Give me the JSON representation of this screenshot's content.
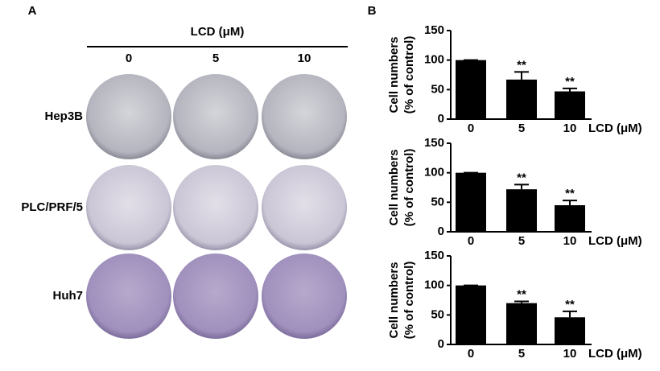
{
  "panel_a": {
    "label": "A",
    "treatment": "LCD (μM)",
    "doses": [
      "0",
      "5",
      "10"
    ],
    "cell_lines": [
      "Hep3B",
      "PLC/PRF/5",
      "Huh7"
    ]
  },
  "panel_b": {
    "label": "B"
  },
  "chart_data": [
    {
      "type": "bar",
      "ylabel": [
        "Cell numbers",
        "(% of control)"
      ],
      "xlabel": "LCD (μM)",
      "categories": [
        "0",
        "5",
        "10"
      ],
      "values": [
        100,
        67,
        47
      ],
      "errors": [
        0,
        13,
        5
      ],
      "significance": [
        null,
        "**",
        "**"
      ],
      "color": "#000000",
      "ylim": [
        0,
        150
      ],
      "yticks": [
        0,
        50,
        100,
        150
      ]
    },
    {
      "type": "bar",
      "ylabel": [
        "Cell numbers",
        "(% of control)"
      ],
      "xlabel": "LCD (μM)",
      "categories": [
        "0",
        "5",
        "10"
      ],
      "values": [
        100,
        72,
        45
      ],
      "errors": [
        0,
        8,
        8
      ],
      "significance": [
        null,
        "**",
        "**"
      ],
      "color": "#000000",
      "ylim": [
        0,
        150
      ],
      "yticks": [
        0,
        50,
        100,
        150
      ]
    },
    {
      "type": "bar",
      "ylabel": [
        "Cell numbers",
        "(% of control)"
      ],
      "xlabel": "LCD (μM)",
      "categories": [
        "0",
        "5",
        "10"
      ],
      "values": [
        100,
        70,
        46
      ],
      "errors": [
        0,
        3,
        10
      ],
      "significance": [
        null,
        "**",
        "**"
      ],
      "color": "#000000",
      "ylim": [
        0,
        150
      ],
      "yticks": [
        0,
        50,
        100,
        150
      ]
    }
  ]
}
